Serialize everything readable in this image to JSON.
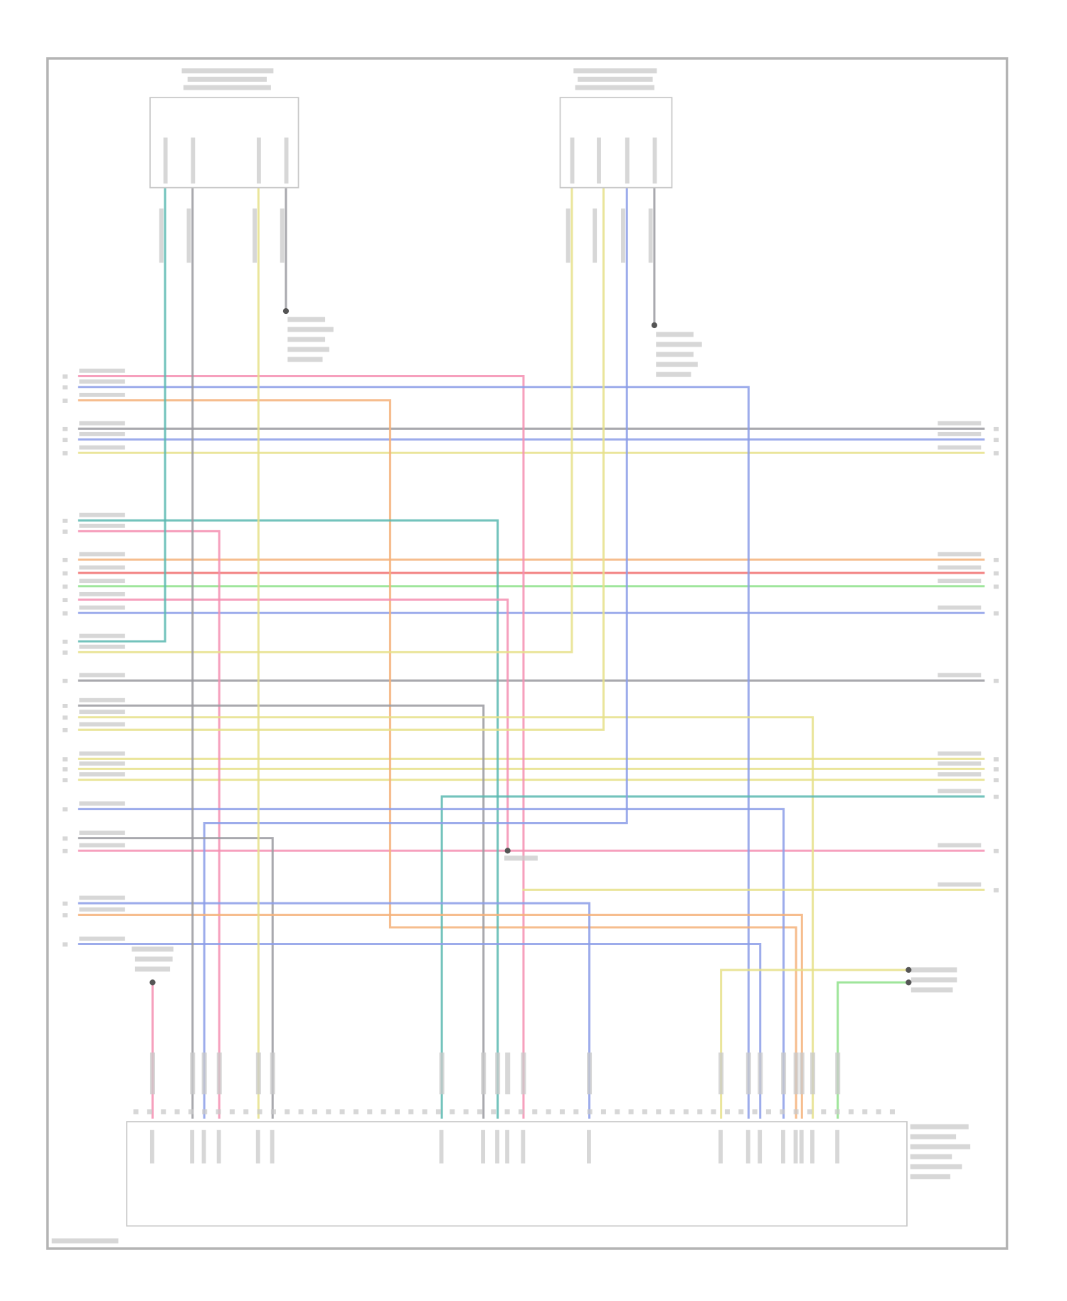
{
  "diagram": {
    "kind": "wiring-diagram",
    "text_legible": false,
    "colors": {
      "frame": "#b4b4b4",
      "connector": "#c8c8c8",
      "pink": "#f48fb1",
      "blue": "#8c9ee8",
      "orange": "#f5b27a",
      "gray": "#9a9aa0",
      "yellow": "#e6e08a",
      "teal": "#5bb8b0",
      "red": "#f06c6c",
      "green": "#8ee08a"
    },
    "components": [
      {
        "id": "left-upper-module"
      },
      {
        "id": "right-upper-module"
      },
      {
        "id": "bottom-control-module"
      }
    ]
  }
}
